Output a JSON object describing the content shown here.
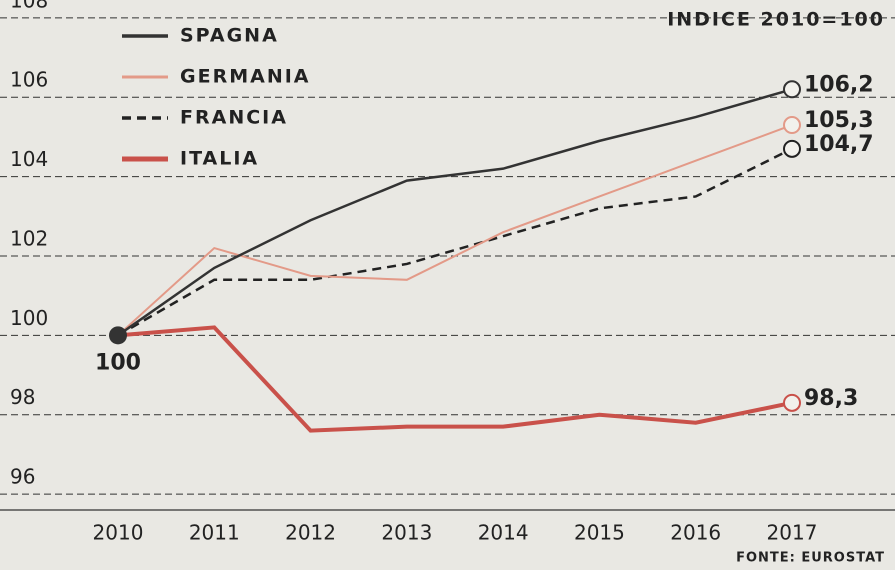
{
  "chart_data": {
    "type": "line",
    "title": "INDICE 2010=100",
    "source": "FONTE: EUROSTAT",
    "categories": [
      "2010",
      "2011",
      "2012",
      "2013",
      "2014",
      "2015",
      "2016",
      "2017"
    ],
    "series": [
      {
        "name": "SPAGNA",
        "color": "#333333",
        "dash": "solid",
        "values": [
          100,
          101.7,
          102.9,
          103.9,
          104.2,
          104.9,
          105.5,
          106.2
        ],
        "value_labels": [
          "100",
          null,
          null,
          null,
          null,
          null,
          null,
          "106,2"
        ]
      },
      {
        "name": "GERMANIA",
        "color": "#e39a88",
        "dash": "solid",
        "values": [
          100,
          102.2,
          101.5,
          101.4,
          102.6,
          103.5,
          104.4,
          105.3
        ],
        "value_labels": [
          null,
          null,
          null,
          null,
          null,
          null,
          null,
          "105,3"
        ]
      },
      {
        "name": "FRANCIA",
        "color": "#222222",
        "dash": "dashed",
        "values": [
          100,
          101.4,
          101.4,
          101.8,
          102.5,
          103.2,
          103.5,
          104.7
        ],
        "value_labels": [
          null,
          null,
          null,
          null,
          null,
          null,
          null,
          "104,7"
        ]
      },
      {
        "name": "ITALIA",
        "color": "#c9514a",
        "dash": "solid",
        "values": [
          100,
          100.2,
          97.6,
          97.7,
          97.7,
          98.0,
          97.8,
          98.3
        ],
        "value_labels": [
          null,
          null,
          null,
          null,
          null,
          null,
          null,
          "98,3"
        ]
      }
    ],
    "ylim": [
      95.6,
      108.45
    ],
    "yticks": [
      96,
      98,
      100,
      102,
      104,
      106,
      108
    ],
    "grid": true
  }
}
